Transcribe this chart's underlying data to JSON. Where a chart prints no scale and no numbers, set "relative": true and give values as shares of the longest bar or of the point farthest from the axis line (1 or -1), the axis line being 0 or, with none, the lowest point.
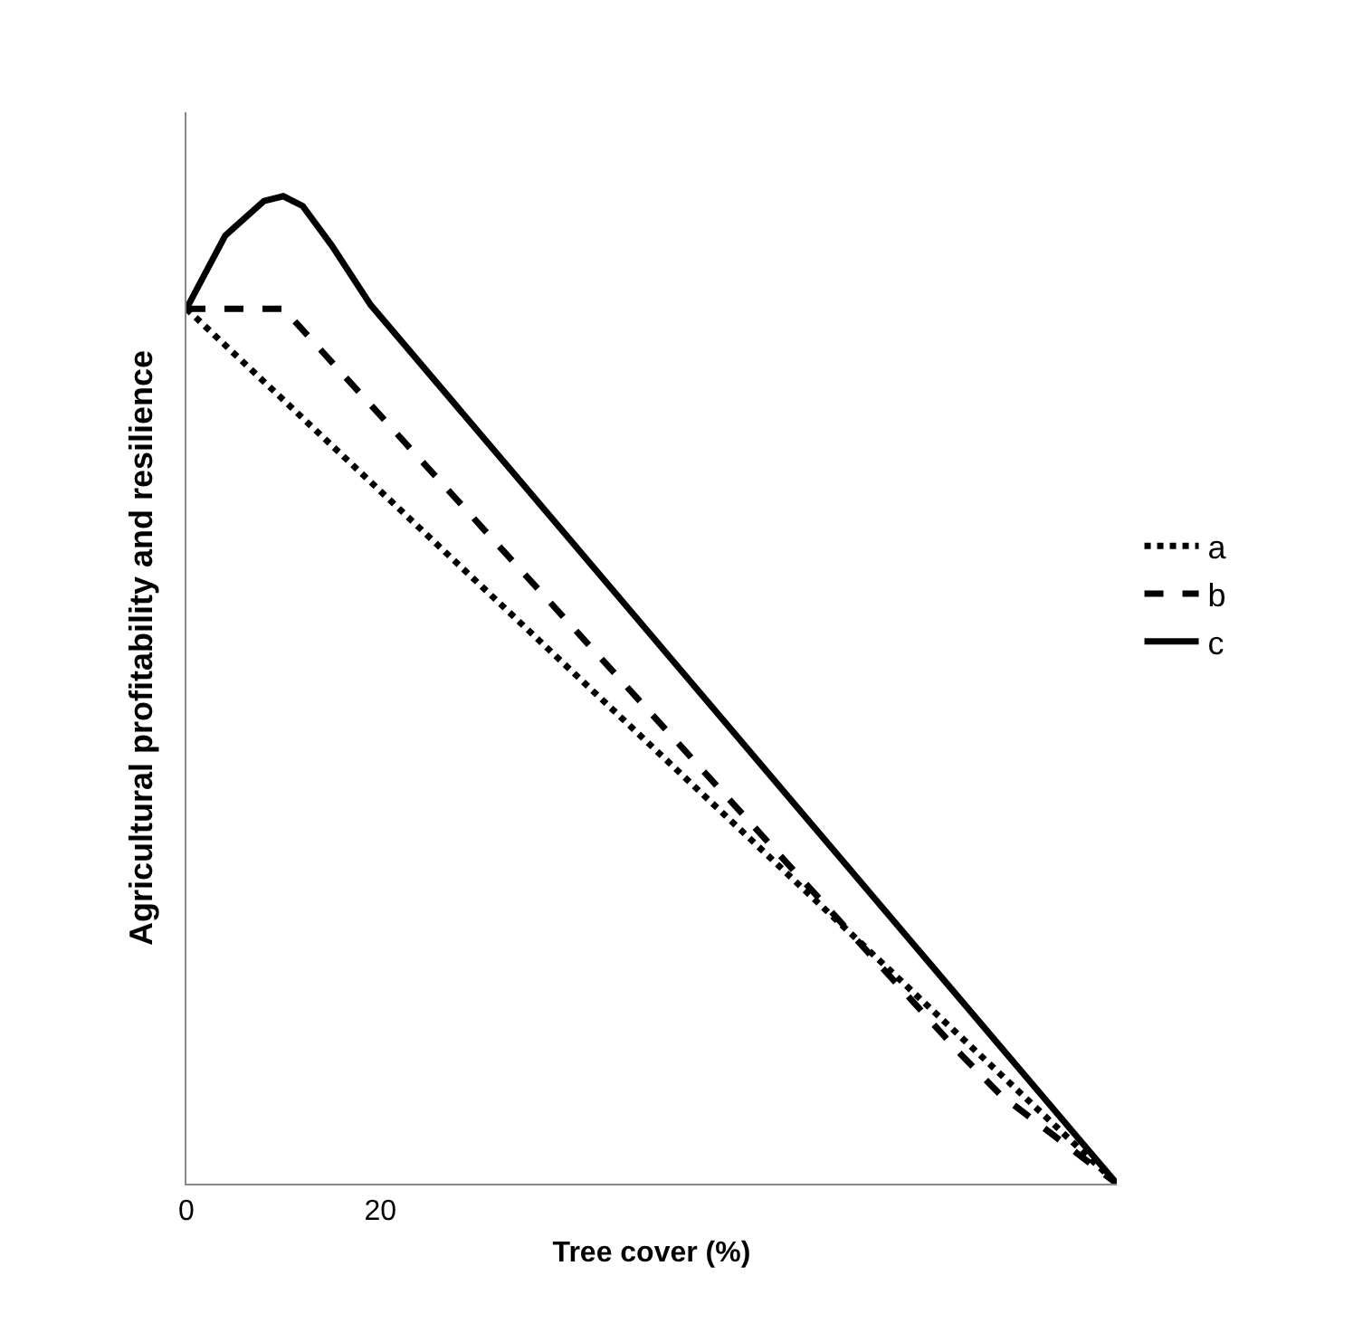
{
  "chart_data": {
    "type": "line",
    "relative": true,
    "xlabel": "Tree cover (%)",
    "ylabel": "Agricultural profitability and resilience",
    "xlim": [
      0,
      96
    ],
    "xticks": [
      0,
      20
    ],
    "legend": "right",
    "marker": "none",
    "tick_labels": "x",
    "series": [
      {
        "name": "a",
        "color": "#000000",
        "line_style": "dotted",
        "x": [
          0,
          96
        ],
        "values": [
          0.886,
          0
        ]
      },
      {
        "name": "b",
        "color": "#000000",
        "line_style": "dashed",
        "x": [
          0,
          10,
          80,
          84,
          96
        ],
        "values": [
          0.886,
          0.886,
          0.13,
          0.09,
          0
        ]
      },
      {
        "name": "c",
        "color": "#000000",
        "line_style": "solid",
        "x": [
          0,
          4,
          8,
          10,
          12,
          15,
          19,
          96
        ],
        "values": [
          0.886,
          0.96,
          0.995,
          1,
          0.99,
          0.95,
          0.89,
          0
        ]
      }
    ]
  }
}
